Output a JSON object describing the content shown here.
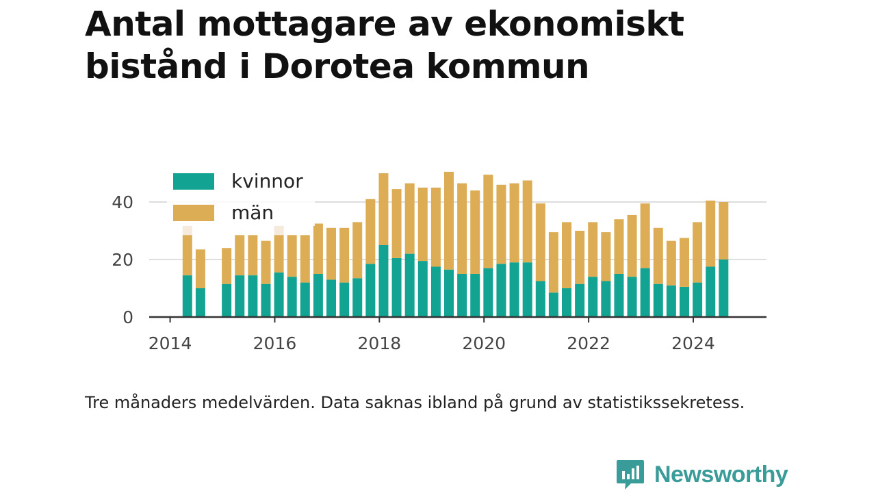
{
  "title": "Antal mottagare av ekonomiskt bistånd i Dorotea kommun",
  "caption": "Tre månaders medelvärden. Data saknas ibland på grund av statistikssekretess.",
  "brand": {
    "name": "Newsworthy",
    "color": "#3a9c99",
    "icon": "newsworthy-logo-icon"
  },
  "colors": {
    "kvinnor": "#12a392",
    "man": "#ddad56",
    "missing": "#f5eadb",
    "grid": "#dddddd",
    "axis": "#333333"
  },
  "chart_data": {
    "type": "bar",
    "stacked": true,
    "title": "Antal mottagare av ekonomiskt bistånd i Dorotea kommun",
    "xlabel": "",
    "ylabel": "",
    "ylim": [
      0,
      50
    ],
    "yticks": [
      "0",
      "20",
      "40"
    ],
    "xlim": [
      2013.6,
      2025.4
    ],
    "xticks": [
      "2014",
      "2016",
      "2018",
      "2020",
      "2022",
      "2024"
    ],
    "legend": {
      "placement": "top-left"
    },
    "grid": true,
    "x": [
      2014.33,
      2014.58,
      2015.08,
      2015.33,
      2015.58,
      2015.83,
      2016.08,
      2016.33,
      2016.58,
      2016.83,
      2017.08,
      2017.33,
      2017.58,
      2017.83,
      2018.08,
      2018.33,
      2018.58,
      2018.83,
      2019.08,
      2019.33,
      2019.58,
      2019.83,
      2020.08,
      2020.33,
      2020.58,
      2020.83,
      2021.08,
      2021.33,
      2021.58,
      2021.83,
      2022.08,
      2022.33,
      2022.58,
      2022.83,
      2023.08,
      2023.33,
      2023.58,
      2023.83,
      2024.08,
      2024.33,
      2024.58
    ],
    "series": [
      {
        "name": "kvinnor",
        "values": [
          14.5,
          10,
          11.5,
          14.5,
          14.5,
          11.5,
          15.5,
          14,
          12,
          15,
          13,
          12,
          13.5,
          18.5,
          25,
          20.5,
          22,
          19.5,
          17.5,
          16.5,
          15,
          15,
          17,
          18.5,
          19,
          19,
          12.5,
          8.5,
          10,
          11.5,
          14,
          12.5,
          15,
          14,
          17,
          11.5,
          11,
          10.5,
          12,
          17.5,
          20
        ]
      },
      {
        "name": "män",
        "values": [
          14,
          13.5,
          12.5,
          14,
          14,
          15,
          13,
          14.5,
          16.5,
          17.5,
          18,
          19,
          19.5,
          22.5,
          25,
          24,
          24.5,
          25.5,
          27.5,
          34,
          31.5,
          29,
          32.5,
          27.5,
          27.5,
          28.5,
          27,
          21,
          23,
          18.5,
          19,
          17,
          19,
          21.5,
          22.5,
          19.5,
          15.5,
          17,
          21,
          23,
          20
        ]
      }
    ],
    "missing_flags": [
      1,
      0,
      0,
      0,
      0,
      0,
      1,
      0,
      0,
      0,
      0,
      0,
      0,
      0,
      0,
      0,
      0,
      0,
      0,
      0,
      0,
      0,
      0,
      0,
      0,
      0,
      0,
      0,
      0,
      0,
      0,
      0,
      0,
      0,
      0,
      0,
      0,
      0,
      0,
      0,
      0
    ]
  }
}
